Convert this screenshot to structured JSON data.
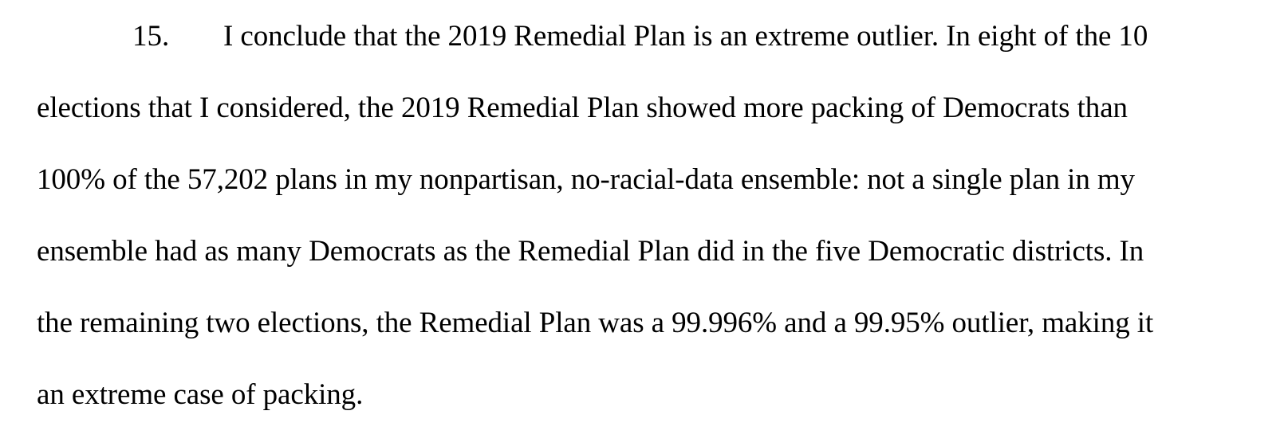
{
  "paragraph": {
    "number": "15.",
    "lines": [
      "I conclude that the 2019 Remedial Plan is an extreme outlier.  In eight of the 10",
      "elections that I considered, the 2019 Remedial Plan showed more packing of Democrats than",
      "100% of the 57,202 plans in my nonpartisan, no-racial-data ensemble: not a single plan in my",
      "ensemble had as many Democrats as the Remedial Plan did in the five Democratic districts.  In",
      "the remaining two elections, the Remedial Plan was a 99.996% and a 99.95% outlier, making it",
      "an extreme case of packing."
    ]
  }
}
